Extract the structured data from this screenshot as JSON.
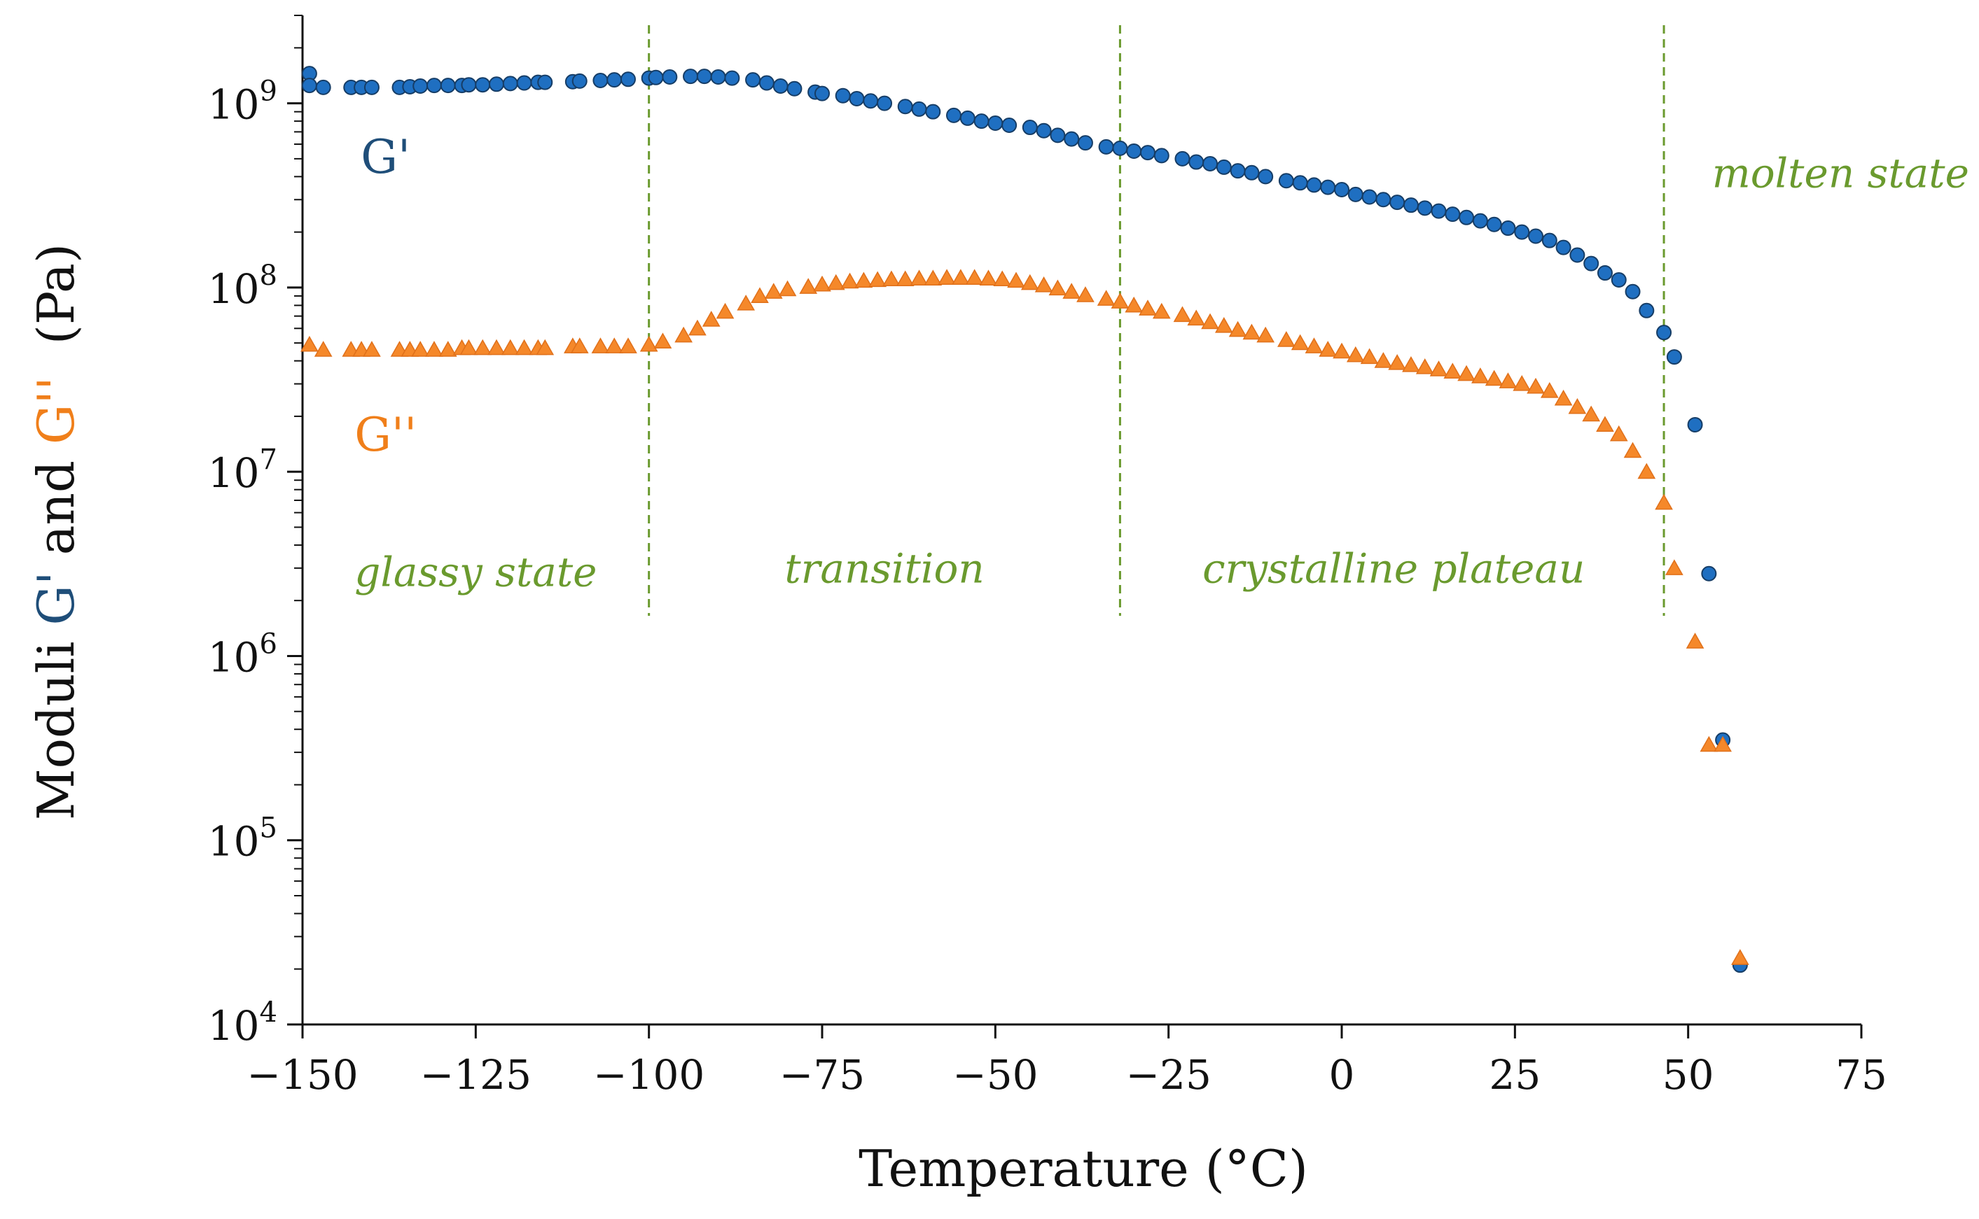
{
  "chart_data": {
    "type": "scatter",
    "title": "",
    "xlabel": "Temperature (°C)",
    "ylabel": {
      "prefix": "Moduli ",
      "g1": "G'",
      "mid": " and ",
      "g2": "G''",
      "suffix": "  (Pa)"
    },
    "xlim": [
      -150,
      75
    ],
    "ylim": [
      10000,
      3000000000
    ],
    "yscale": "log",
    "xticks": [
      -150,
      -125,
      -100,
      -75,
      -50,
      -25,
      0,
      25,
      50,
      75
    ],
    "xtick_labels": [
      "−150",
      "−125",
      "−100",
      "−75",
      "−50",
      "−25",
      "0",
      "25",
      "50",
      "75"
    ],
    "yticks": [
      {
        "value": 10000,
        "base": "10",
        "exp": "4"
      },
      {
        "value": 100000,
        "base": "10",
        "exp": "5"
      },
      {
        "value": 1000000,
        "base": "10",
        "exp": "6"
      },
      {
        "value": 10000000,
        "base": "10",
        "exp": "7"
      },
      {
        "value": 100000000,
        "base": "10",
        "exp": "8"
      },
      {
        "value": 1000000000,
        "base": "10",
        "exp": "9"
      }
    ],
    "dividers": [
      -100,
      -32,
      46.5
    ],
    "regions": [
      {
        "label": "glassy state",
        "x": -125,
        "y": 2400000
      },
      {
        "label": "transition",
        "x": -66,
        "y": 2500000
      },
      {
        "label": "crystalline plateau",
        "x": 7.5,
        "y": 2500000
      },
      {
        "label": "molten state",
        "x": 72,
        "y": 350000000
      }
    ],
    "series_labels": [
      {
        "text": "G'",
        "x": -138,
        "y": 420000000,
        "color": "#1f4e79"
      },
      {
        "text": "G''",
        "x": -138,
        "y": 13000000,
        "color": "#f07f1a"
      }
    ],
    "series": [
      {
        "name": "G'",
        "marker": "circle",
        "color": "#1f6fc1",
        "edge": "#163d66",
        "points": [
          [
            -149,
            1450000000
          ],
          [
            -149,
            1250000000
          ],
          [
            -147,
            1220000000
          ],
          [
            -143,
            1220000000
          ],
          [
            -141.5,
            1220000000
          ],
          [
            -140,
            1220000000
          ],
          [
            -136,
            1220000000
          ],
          [
            -134.5,
            1230000000
          ],
          [
            -133,
            1240000000
          ],
          [
            -131,
            1250000000
          ],
          [
            -129,
            1250000000
          ],
          [
            -127,
            1250000000
          ],
          [
            -126,
            1260000000
          ],
          [
            -124,
            1260000000
          ],
          [
            -122,
            1270000000
          ],
          [
            -120,
            1280000000
          ],
          [
            -118,
            1290000000
          ],
          [
            -116,
            1300000000
          ],
          [
            -115,
            1300000000
          ],
          [
            -111,
            1310000000
          ],
          [
            -110,
            1320000000
          ],
          [
            -107,
            1330000000
          ],
          [
            -105,
            1340000000
          ],
          [
            -103,
            1350000000
          ],
          [
            -100,
            1370000000
          ],
          [
            -99,
            1380000000
          ],
          [
            -97,
            1390000000
          ],
          [
            -94,
            1400000000
          ],
          [
            -92,
            1400000000
          ],
          [
            -90,
            1390000000
          ],
          [
            -88,
            1370000000
          ],
          [
            -85,
            1340000000
          ],
          [
            -83,
            1290000000
          ],
          [
            -81,
            1240000000
          ],
          [
            -79,
            1200000000
          ],
          [
            -76,
            1150000000
          ],
          [
            -75,
            1130000000
          ],
          [
            -72,
            1100000000
          ],
          [
            -70,
            1060000000
          ],
          [
            -68,
            1030000000
          ],
          [
            -66,
            1000000000
          ],
          [
            -63,
            960000000
          ],
          [
            -61,
            930000000
          ],
          [
            -59,
            900000000
          ],
          [
            -56,
            860000000
          ],
          [
            -54,
            830000000
          ],
          [
            -52,
            800000000
          ],
          [
            -50,
            780000000
          ],
          [
            -48,
            760000000
          ],
          [
            -45,
            740000000
          ],
          [
            -43,
            710000000
          ],
          [
            -41,
            670000000
          ],
          [
            -39,
            640000000
          ],
          [
            -37,
            610000000
          ],
          [
            -34,
            580000000
          ],
          [
            -32,
            570000000
          ],
          [
            -30,
            550000000
          ],
          [
            -28,
            540000000
          ],
          [
            -26,
            520000000
          ],
          [
            -23,
            500000000
          ],
          [
            -21,
            480000000
          ],
          [
            -19,
            470000000
          ],
          [
            -17,
            450000000
          ],
          [
            -15,
            430000000
          ],
          [
            -13,
            420000000
          ],
          [
            -11,
            400000000
          ],
          [
            -8,
            380000000
          ],
          [
            -6,
            370000000
          ],
          [
            -4,
            360000000
          ],
          [
            -2,
            350000000
          ],
          [
            0,
            340000000
          ],
          [
            2,
            320000000
          ],
          [
            4,
            310000000
          ],
          [
            6,
            300000000
          ],
          [
            8,
            290000000
          ],
          [
            10,
            280000000
          ],
          [
            12,
            270000000
          ],
          [
            14,
            260000000
          ],
          [
            16,
            250000000
          ],
          [
            18,
            240000000
          ],
          [
            20,
            230000000
          ],
          [
            22,
            220000000
          ],
          [
            24,
            210000000
          ],
          [
            26,
            200000000
          ],
          [
            28,
            190000000
          ],
          [
            30,
            180000000
          ],
          [
            32,
            165000000
          ],
          [
            34,
            150000000
          ],
          [
            36,
            135000000
          ],
          [
            38,
            120000000
          ],
          [
            40,
            110000000
          ],
          [
            42,
            95000000
          ],
          [
            44,
            75000000
          ],
          [
            46.5,
            57000000
          ],
          [
            48,
            42000000
          ],
          [
            51,
            18000000
          ],
          [
            53,
            2800000
          ],
          [
            55,
            350000
          ],
          [
            57.5,
            21000
          ]
        ]
      },
      {
        "name": "G''",
        "marker": "triangle",
        "color": "#f5882a",
        "edge": "#e0701a",
        "points": [
          [
            -149,
            49000000
          ],
          [
            -147,
            46000000
          ],
          [
            -143,
            46000000
          ],
          [
            -141.5,
            46000000
          ],
          [
            -140,
            46000000
          ],
          [
            -136,
            46000000
          ],
          [
            -134.5,
            46000000
          ],
          [
            -133,
            46000000
          ],
          [
            -131,
            46000000
          ],
          [
            -129,
            46000000
          ],
          [
            -127,
            47000000
          ],
          [
            -126,
            47000000
          ],
          [
            -124,
            47000000
          ],
          [
            -122,
            47000000
          ],
          [
            -120,
            47000000
          ],
          [
            -118,
            47000000
          ],
          [
            -116,
            47000000
          ],
          [
            -115,
            47000000
          ],
          [
            -111,
            48000000
          ],
          [
            -110,
            48000000
          ],
          [
            -107,
            48000000
          ],
          [
            -105,
            48000000
          ],
          [
            -103,
            48000000
          ],
          [
            -100,
            49000000
          ],
          [
            -98,
            51000000
          ],
          [
            -95,
            55000000
          ],
          [
            -93,
            60000000
          ],
          [
            -91,
            67000000
          ],
          [
            -89,
            74000000
          ],
          [
            -86,
            82000000
          ],
          [
            -84,
            90000000
          ],
          [
            -82,
            95000000
          ],
          [
            -80,
            98000000
          ],
          [
            -77,
            101000000
          ],
          [
            -75,
            104000000
          ],
          [
            -73,
            106000000
          ],
          [
            -71,
            108000000
          ],
          [
            -69,
            109000000
          ],
          [
            -67,
            110000000
          ],
          [
            -65,
            111000000
          ],
          [
            -63,
            111000000
          ],
          [
            -61,
            112000000
          ],
          [
            -59,
            112000000
          ],
          [
            -57,
            113000000
          ],
          [
            -55,
            113000000
          ],
          [
            -53,
            113000000
          ],
          [
            -51,
            112000000
          ],
          [
            -49,
            111000000
          ],
          [
            -47,
            109000000
          ],
          [
            -45,
            106000000
          ],
          [
            -43,
            103000000
          ],
          [
            -41,
            99000000
          ],
          [
            -39,
            95000000
          ],
          [
            -37,
            91000000
          ],
          [
            -34,
            87000000
          ],
          [
            -32,
            84000000
          ],
          [
            -30,
            80000000
          ],
          [
            -28,
            77000000
          ],
          [
            -26,
            74000000
          ],
          [
            -23,
            71000000
          ],
          [
            -21,
            68000000
          ],
          [
            -19,
            65000000
          ],
          [
            -17,
            62000000
          ],
          [
            -15,
            59000000
          ],
          [
            -13,
            57000000
          ],
          [
            -11,
            55000000
          ],
          [
            -8,
            52000000
          ],
          [
            -6,
            50000000
          ],
          [
            -4,
            48000000
          ],
          [
            -2,
            46000000
          ],
          [
            0,
            45000000
          ],
          [
            2,
            43000000
          ],
          [
            4,
            42000000
          ],
          [
            6,
            40000000
          ],
          [
            8,
            39000000
          ],
          [
            10,
            38000000
          ],
          [
            12,
            37000000
          ],
          [
            14,
            36000000
          ],
          [
            16,
            35000000
          ],
          [
            18,
            34000000
          ],
          [
            20,
            33000000
          ],
          [
            22,
            32000000
          ],
          [
            24,
            31000000
          ],
          [
            26,
            30000000
          ],
          [
            28,
            29000000
          ],
          [
            30,
            27500000
          ],
          [
            32,
            25000000
          ],
          [
            34,
            22500000
          ],
          [
            36,
            20500000
          ],
          [
            38,
            18000000
          ],
          [
            40,
            16000000
          ],
          [
            42,
            13000000
          ],
          [
            44,
            10000000
          ],
          [
            46.5,
            6800000
          ],
          [
            48,
            3000000
          ],
          [
            51,
            1200000
          ],
          [
            53,
            330000
          ],
          [
            55,
            330000
          ],
          [
            57.5,
            23000
          ]
        ]
      }
    ]
  }
}
